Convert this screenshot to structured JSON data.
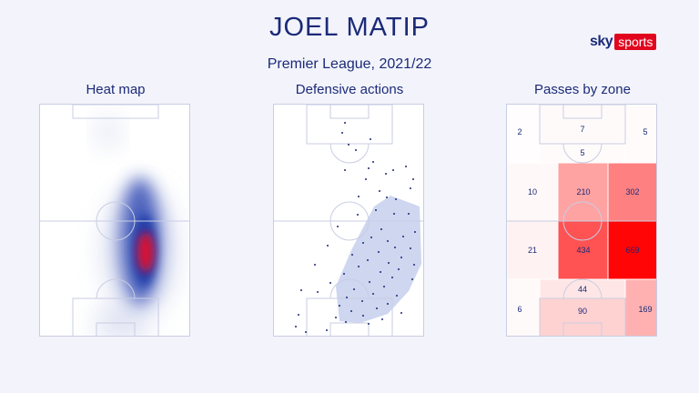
{
  "header": {
    "title": "JOEL MATIP",
    "subtitle": "Premier League, 2021/22"
  },
  "logo": {
    "sky": "sky",
    "sports": "sports"
  },
  "panels": {
    "heatmap": {
      "title": "Heat map"
    },
    "defensive": {
      "title": "Defensive actions"
    },
    "passes": {
      "title": "Passes by zone",
      "zones": [
        {
          "label": "2",
          "value": 2
        },
        {
          "label": "7",
          "value": 7
        },
        {
          "label": "5",
          "value": 5
        },
        {
          "label": "5",
          "value": 5
        },
        {
          "label": "10",
          "value": 10
        },
        {
          "label": "210",
          "value": 210
        },
        {
          "label": "302",
          "value": 302
        },
        {
          "label": "21",
          "value": 21
        },
        {
          "label": "434",
          "value": 434
        },
        {
          "label": "669",
          "value": 669
        },
        {
          "label": "6",
          "value": 6
        },
        {
          "label": "44",
          "value": 44
        },
        {
          "label": "90",
          "value": 90
        },
        {
          "label": "169",
          "value": 169
        }
      ]
    }
  },
  "colors": {
    "pitch_line": "#c8cde3",
    "heat_core": "#e8102a",
    "heat_outer": "#1e3aa8",
    "dot": "#1b2a78",
    "hull": "#c9d2ee",
    "zone_max": "#ff0000"
  }
}
